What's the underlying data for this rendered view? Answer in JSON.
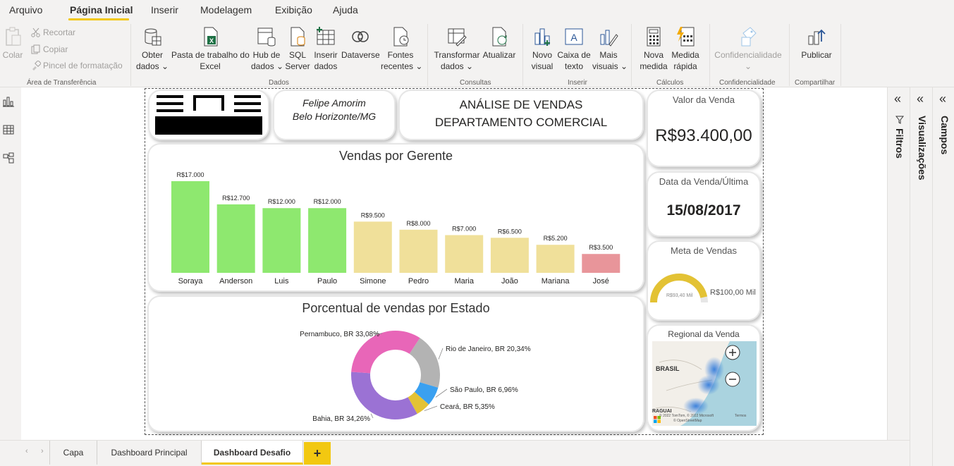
{
  "menu": {
    "items": [
      {
        "label": "Arquivo"
      },
      {
        "label": "Página Inicial"
      },
      {
        "label": "Inserir"
      },
      {
        "label": "Modelagem"
      },
      {
        "label": "Exibição"
      },
      {
        "label": "Ajuda"
      }
    ]
  },
  "ribbon": {
    "clipboard": {
      "paste": "Colar",
      "cut": "Recortar",
      "copy": "Copiar",
      "format_painter": "Pincel de formatação",
      "group": "Área de Transferência"
    },
    "data": {
      "get_data": [
        "Obter",
        "dados"
      ],
      "excel": [
        "Pasta de trabalho do",
        "Excel"
      ],
      "hub": [
        "Hub de",
        "dados"
      ],
      "sql": [
        "SQL",
        "Server"
      ],
      "enter": [
        "Inserir",
        "dados"
      ],
      "dataverse": "Dataverse",
      "recent": [
        "Fontes",
        "recentes"
      ],
      "group": "Dados"
    },
    "queries": {
      "transform": [
        "Transformar",
        "dados"
      ],
      "refresh": "Atualizar",
      "group": "Consultas"
    },
    "insert": {
      "new_visual": [
        "Novo",
        "visual"
      ],
      "textbox": [
        "Caixa de",
        "texto"
      ],
      "more_visuals": [
        "Mais",
        "visuais"
      ],
      "group": "Inserir"
    },
    "calc": {
      "new_measure": [
        "Nova",
        "medida"
      ],
      "quick_measure": [
        "Medida",
        "rápida"
      ],
      "group": "Cálculos"
    },
    "sensitivity": {
      "label": "Confidencialidade",
      "group": "Confidencialidade"
    },
    "share": {
      "publish": "Publicar",
      "group": "Compartilhar"
    }
  },
  "report": {
    "author_name": "Felipe Amorim",
    "author_city": "Belo Horizonte/MG",
    "title_line1": "ANÁLISE DE VENDAS",
    "title_line2": "DEPARTAMENTO COMERCIAL",
    "kpi_sales_title": "Valor da Venda",
    "kpi_sales_value": "R$93.400,00",
    "kpi_date_title": "Data da Venda/Última",
    "kpi_date_value": "15/08/2017",
    "gauge_title": "Meta de Vendas",
    "gauge_value_label": "R$93,40 Mil",
    "gauge_target_label": "R$100,00 Mil",
    "gauge_value": 93.4,
    "gauge_max": 100,
    "map_title": "Regional da Venda",
    "map_label_brasil": "BRASIL",
    "map_label_paraguai": "RAGUAI",
    "map_attribution_1": "© 2022 TomTom, © 2022 Microsoft",
    "map_attribution_2": "© OpenStreetMap",
    "map_terms": "Termos"
  },
  "chart_data": [
    {
      "type": "bar",
      "title": "Vendas por Gerente",
      "categories": [
        "Soraya",
        "Anderson",
        "Luis",
        "Paulo",
        "Simone",
        "Pedro",
        "Maria",
        "João",
        "Mariana",
        "José"
      ],
      "values": [
        17000,
        12700,
        12000,
        12000,
        9500,
        8000,
        7000,
        6500,
        5200,
        3500
      ],
      "labels": [
        "R$17.000",
        "R$12.700",
        "R$12.000",
        "R$12.000",
        "R$9.500",
        "R$8.000",
        "R$7.000",
        "R$6.500",
        "R$5.200",
        "R$3.500"
      ],
      "colors": [
        "#8ee86f",
        "#8ee86f",
        "#8ee86f",
        "#8ee86f",
        "#f0e09a",
        "#f0e09a",
        "#f0e09a",
        "#f0e09a",
        "#f0e09a",
        "#e8959a"
      ],
      "ylim": [
        0,
        17000
      ]
    },
    {
      "type": "pie",
      "title": "Porcentual de vendas por Estado",
      "slices": [
        {
          "label": "Rio de Janeiro, BR 20,34%",
          "value": 20.34,
          "color": "#b3b3b3"
        },
        {
          "label": "São Paulo, BR 6,96%",
          "value": 6.96,
          "color": "#3aa0f0"
        },
        {
          "label": "Ceará, BR 5,35%",
          "value": 5.35,
          "color": "#e3c234"
        },
        {
          "label": "Bahia, BR 34,26%",
          "value": 34.26,
          "color": "#9b72d4"
        },
        {
          "label": "Pernambuco, BR 33,08%",
          "value": 33.08,
          "color": "#e866b8"
        }
      ]
    }
  ],
  "panes": {
    "filters": "Filtros",
    "visualizations": "Visualizações",
    "fields": "Campos"
  },
  "tabs": [
    {
      "label": "Capa"
    },
    {
      "label": "Dashboard Principal"
    },
    {
      "label": "Dashboard Desafio"
    }
  ],
  "add_tab": "+"
}
